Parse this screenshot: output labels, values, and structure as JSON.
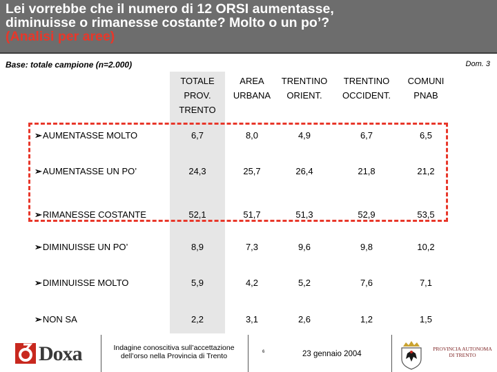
{
  "header": {
    "title_line1": "Lei vorrebbe che il numero di 12 ORSI aumentasse,",
    "title_line2": "diminuisse o rimanesse costante? Molto o un po’?",
    "subtitle": "(Analisi per aree)"
  },
  "base_note": "Base: totale campione  (n=2.000)",
  "dom_ref": "Dom. 3",
  "columns": [
    "TOTALE\nPROV.\nTRENTO",
    "AREA\nURBANA",
    "TRENTINO\nORIENT.",
    "TRENTINO\nOCCIDENT.",
    "COMUNI\nPNAB"
  ],
  "rows": [
    {
      "label": "AUMENTASSE MOLTO",
      "values": [
        "6,7",
        "8,0",
        "4,9",
        "6,7",
        "6,5"
      ]
    },
    {
      "label": "AUMENTASSE UN PO’",
      "values": [
        "24,3",
        "25,7",
        "26,4",
        "21,8",
        "21,2"
      ]
    },
    {
      "label": "RIMANESSE COSTANTE",
      "values": [
        "52,1",
        "51,7",
        "51,3",
        "52,9",
        "53,5"
      ]
    },
    {
      "label": "DIMINUISSE UN PO’",
      "values": [
        "8,9",
        "7,3",
        "9,6",
        "9,8",
        "10,2"
      ]
    },
    {
      "label": "DIMINUISSE MOLTO",
      "values": [
        "5,9",
        "4,2",
        "5,2",
        "7,6",
        "7,1"
      ]
    },
    {
      "label": "NON SA",
      "values": [
        "2,2",
        "3,1",
        "2,6",
        "1,2",
        "1,5"
      ]
    }
  ],
  "arrow_glyph": "Ø",
  "footer": {
    "logo_text": "Doxa",
    "note_line1": "Indagine conoscitiva sull’accettazione",
    "note_line2": "dell’orso nella Provincia di Trento",
    "page": "6",
    "date": "23 gennaio 2004",
    "province_line1": "PROVINCIA AUTONOMA",
    "province_line2": "DI TRENTO"
  },
  "colors": {
    "header_bg": "#6d6d6d",
    "accent": "#e8372a",
    "shade": "#e6e6e6"
  }
}
